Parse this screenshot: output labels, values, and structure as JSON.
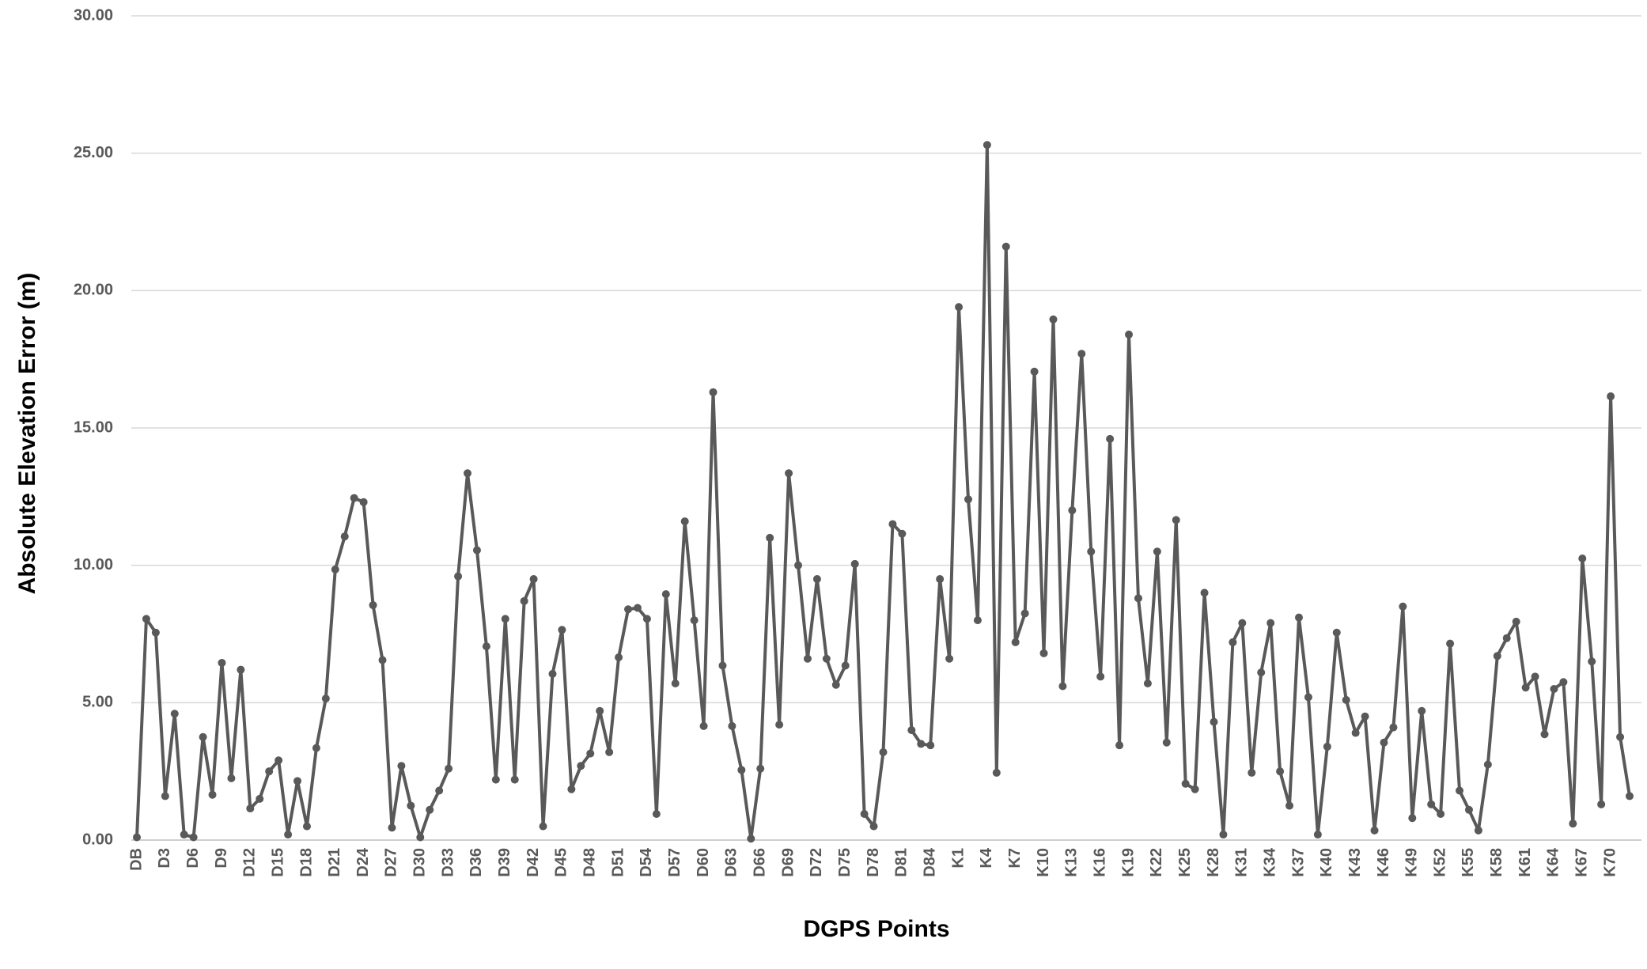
{
  "chart_data": {
    "type": "line",
    "x_label": "DGPS Points",
    "y_label": "Absolute Elevation Error (m)",
    "color": "#595959",
    "grid": true,
    "ylim": [
      0,
      30
    ],
    "yticks": [
      {
        "value": 0,
        "label": "0.00"
      },
      {
        "value": 5,
        "label": "5.00"
      },
      {
        "value": 10,
        "label": "10.00"
      },
      {
        "value": 15,
        "label": "15.00"
      },
      {
        "value": 20,
        "label": "20.00"
      },
      {
        "value": 25,
        "label": "25.00"
      },
      {
        "value": 30,
        "label": "30.00"
      }
    ],
    "categories": [
      "DB",
      null,
      null,
      "D3",
      null,
      null,
      "D6",
      null,
      null,
      "D9",
      null,
      null,
      "D12",
      null,
      null,
      "D15",
      null,
      null,
      "D18",
      null,
      null,
      "D21",
      null,
      null,
      "D24",
      null,
      null,
      "D27",
      null,
      null,
      "D30",
      null,
      null,
      "D33",
      null,
      null,
      "D36",
      null,
      null,
      "D39",
      null,
      null,
      "D42",
      null,
      null,
      "D45",
      null,
      null,
      "D48",
      null,
      null,
      "D51",
      null,
      null,
      "D54",
      null,
      null,
      "D57",
      null,
      null,
      "D60",
      null,
      null,
      "D63",
      null,
      null,
      "D66",
      null,
      null,
      "D69",
      null,
      null,
      "D72",
      null,
      null,
      "D75",
      null,
      null,
      "D78",
      null,
      null,
      "D81",
      null,
      null,
      "D84",
      null,
      null,
      "K1",
      null,
      null,
      "K4",
      null,
      null,
      "K7",
      null,
      null,
      "K10",
      null,
      null,
      "K13",
      null,
      null,
      "K16",
      null,
      null,
      "K19",
      null,
      null,
      "K22",
      null,
      null,
      "K25",
      null,
      null,
      "K28",
      null,
      null,
      "K31",
      null,
      null,
      "K34",
      null,
      null,
      "K37",
      null,
      null,
      "K40",
      null,
      null,
      "K43",
      null,
      null,
      "K46",
      null,
      null,
      "K49",
      null,
      null,
      "K52",
      null,
      null,
      "K55",
      null,
      null,
      "K58",
      null,
      null,
      "K61",
      null,
      null,
      "K64",
      null,
      null,
      "K67",
      null,
      null,
      "K70",
      null,
      null
    ],
    "values": [
      0.1,
      8.05,
      7.55,
      1.6,
      4.6,
      0.2,
      0.1,
      3.75,
      1.65,
      6.45,
      2.25,
      6.2,
      1.15,
      1.5,
      2.5,
      2.9,
      0.2,
      2.15,
      0.5,
      3.35,
      5.15,
      9.85,
      11.05,
      12.45,
      12.3,
      8.55,
      6.55,
      0.45,
      2.7,
      1.25,
      0.1,
      1.1,
      1.8,
      2.6,
      9.6,
      13.35,
      10.55,
      7.05,
      2.2,
      8.05,
      2.2,
      8.7,
      9.5,
      0.5,
      6.05,
      7.65,
      1.85,
      2.7,
      3.15,
      4.7,
      3.2,
      6.65,
      8.4,
      8.45,
      8.05,
      0.95,
      8.95,
      5.7,
      11.6,
      8.0,
      4.15,
      16.3,
      6.35,
      4.15,
      2.55,
      0.05,
      2.6,
      11.0,
      4.2,
      13.35,
      10.0,
      6.6,
      9.5,
      6.6,
      5.65,
      6.35,
      10.05,
      0.95,
      0.5,
      3.2,
      11.5,
      11.15,
      4.0,
      3.5,
      3.45,
      9.5,
      6.6,
      19.4,
      12.4,
      8.0,
      25.3,
      2.45,
      21.6,
      7.2,
      8.25,
      17.05,
      6.8,
      18.95,
      5.6,
      12.0,
      17.7,
      10.5,
      5.95,
      14.6,
      3.45,
      18.4,
      8.8,
      5.7,
      10.5,
      3.55,
      11.65,
      2.05,
      1.85,
      9.0,
      4.3,
      0.2,
      7.2,
      7.9,
      2.45,
      6.1,
      7.9,
      2.5,
      1.25,
      8.1,
      5.2,
      0.2,
      3.4,
      7.55,
      5.1,
      3.9,
      4.5,
      0.35,
      3.55,
      4.1,
      8.5,
      0.8,
      4.7,
      1.3,
      0.95,
      7.15,
      1.8,
      1.1,
      0.35,
      2.75,
      6.7,
      7.35,
      7.95,
      5.55,
      5.95,
      3.85,
      5.5,
      5.75,
      0.6,
      10.25,
      6.5,
      1.3,
      16.15,
      3.75,
      1.6
    ]
  }
}
